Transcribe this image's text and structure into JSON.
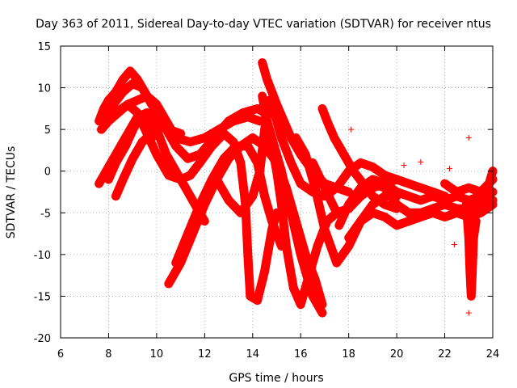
{
  "chart_data": {
    "type": "scatter",
    "title": "Day 363 of 2011, Sidereal Day-to-day VTEC variation (SDTVAR) for receiver ntus",
    "xlabel": "GPS time / hours",
    "ylabel": "SDTVAR / TECUs",
    "xlim": [
      6,
      24
    ],
    "ylim": [
      -20,
      15
    ],
    "xticks": [
      6,
      8,
      10,
      12,
      14,
      16,
      18,
      20,
      22,
      24
    ],
    "yticks": [
      -20,
      -15,
      -10,
      -5,
      0,
      5,
      10,
      15
    ],
    "grid": true,
    "marker": "+",
    "color": "#ff0000",
    "series": [
      {
        "values": [
          [
            7.6,
            6.0
          ],
          [
            7.8,
            7.5
          ],
          [
            8.0,
            8.5
          ],
          [
            8.3,
            9.5
          ],
          [
            8.6,
            11.0
          ],
          [
            8.9,
            12.0
          ],
          [
            9.2,
            11.0
          ],
          [
            9.6,
            9.0
          ],
          [
            10.0,
            7.0
          ],
          [
            10.5,
            5.0
          ],
          [
            11.0,
            4.5
          ]
        ]
      },
      {
        "values": [
          [
            7.7,
            5.0
          ],
          [
            8.0,
            6.0
          ],
          [
            8.4,
            7.0
          ],
          [
            8.8,
            8.0
          ],
          [
            9.2,
            8.5
          ],
          [
            9.6,
            9.0
          ],
          [
            10.0,
            8.0
          ],
          [
            10.4,
            6.0
          ],
          [
            10.8,
            4.0
          ],
          [
            11.4,
            3.5
          ],
          [
            12.0,
            4.0
          ],
          [
            12.6,
            5.0
          ],
          [
            13.2,
            6.0
          ],
          [
            13.8,
            6.5
          ],
          [
            14.3,
            6.0
          ]
        ]
      },
      {
        "values": [
          [
            7.9,
            6.5
          ],
          [
            8.2,
            8.0
          ],
          [
            8.6,
            9.5
          ],
          [
            9.0,
            10.5
          ],
          [
            9.4,
            10.0
          ],
          [
            9.8,
            8.0
          ],
          [
            10.3,
            5.5
          ],
          [
            10.8,
            3.0
          ],
          [
            11.3,
            1.5
          ],
          [
            11.8,
            2.0
          ],
          [
            12.4,
            4.0
          ],
          [
            13.0,
            6.0
          ],
          [
            13.6,
            7.0
          ],
          [
            14.2,
            7.5
          ],
          [
            14.5,
            7.0
          ],
          [
            14.8,
            4.0
          ],
          [
            15.2,
            0.0
          ],
          [
            15.6,
            -5.0
          ],
          [
            16.0,
            -10.0
          ],
          [
            16.5,
            -15.0
          ],
          [
            16.9,
            -17.0
          ]
        ]
      },
      {
        "values": [
          [
            7.8,
            5.5
          ],
          [
            8.3,
            7.0
          ],
          [
            8.8,
            8.0
          ],
          [
            9.2,
            7.0
          ],
          [
            9.6,
            4.5
          ],
          [
            10.0,
            2.0
          ],
          [
            10.5,
            -0.5
          ],
          [
            11.0,
            -1.0
          ],
          [
            11.4,
            -0.5
          ],
          [
            11.8,
            1.0
          ],
          [
            12.3,
            3.0
          ],
          [
            12.8,
            4.5
          ],
          [
            13.2,
            3.5
          ],
          [
            13.5,
            1.0
          ],
          [
            13.7,
            -4.0
          ],
          [
            13.8,
            -10.0
          ],
          [
            13.9,
            -15.0
          ],
          [
            14.2,
            -15.5
          ],
          [
            14.5,
            -12.0
          ],
          [
            14.8,
            -7.0
          ],
          [
            15.0,
            -5.0
          ]
        ]
      },
      {
        "values": [
          [
            7.6,
            -1.5
          ],
          [
            8.0,
            0.5
          ],
          [
            8.4,
            2.5
          ],
          [
            8.8,
            4.5
          ],
          [
            9.2,
            6.5
          ],
          [
            9.6,
            7.0
          ],
          [
            10.0,
            5.0
          ],
          [
            10.4,
            2.0
          ],
          [
            10.8,
            0.0
          ],
          [
            11.2,
            -2.0
          ],
          [
            11.6,
            -4.0
          ],
          [
            12.0,
            -6.0
          ]
        ]
      },
      {
        "values": [
          [
            8.0,
            -1.0
          ],
          [
            8.3,
            1.0
          ],
          [
            8.7,
            3.0
          ],
          [
            9.1,
            5.5
          ],
          [
            9.5,
            6.5
          ],
          [
            9.8,
            4.0
          ]
        ]
      },
      {
        "values": [
          [
            8.3,
            -3.0
          ],
          [
            8.6,
            -1.0
          ],
          [
            9.0,
            1.5
          ],
          [
            9.4,
            3.5
          ],
          [
            9.8,
            4.5
          ]
        ]
      },
      {
        "values": [
          [
            10.5,
            -13.5
          ],
          [
            11.0,
            -11.0
          ],
          [
            11.5,
            -7.5
          ],
          [
            12.0,
            -4.0
          ],
          [
            12.5,
            -1.0
          ],
          [
            13.0,
            1.5
          ],
          [
            13.5,
            3.0
          ],
          [
            14.0,
            4.0
          ],
          [
            14.5,
            3.0
          ],
          [
            15.0,
            1.0
          ],
          [
            15.4,
            -2.0
          ],
          [
            15.8,
            -6.0
          ],
          [
            16.2,
            -10.0
          ],
          [
            16.6,
            -13.0
          ],
          [
            16.9,
            -16.0
          ]
        ]
      },
      {
        "values": [
          [
            10.8,
            -11.0
          ],
          [
            11.3,
            -7.5
          ],
          [
            11.8,
            -4.0
          ],
          [
            12.3,
            -1.0
          ],
          [
            12.8,
            1.5
          ],
          [
            13.3,
            3.0
          ],
          [
            13.8,
            3.0
          ],
          [
            14.2,
            1.0
          ],
          [
            14.5,
            -3.0
          ],
          [
            14.8,
            -6.0
          ],
          [
            15.2,
            -9.0
          ]
        ]
      },
      {
        "values": [
          [
            12.5,
            -1.0
          ],
          [
            13.0,
            -3.5
          ],
          [
            13.5,
            -5.0
          ],
          [
            14.0,
            -3.0
          ],
          [
            14.3,
            0.0
          ],
          [
            14.5,
            5.0
          ],
          [
            14.7,
            8.5
          ],
          [
            14.9,
            7.0
          ],
          [
            15.2,
            4.0
          ],
          [
            15.6,
            1.0
          ],
          [
            16.0,
            -1.5
          ],
          [
            16.5,
            -2.5
          ],
          [
            17.0,
            -3.0
          ],
          [
            17.5,
            -2.0
          ],
          [
            18.0,
            0.0
          ],
          [
            18.5,
            1.0
          ],
          [
            19.0,
            0.5
          ],
          [
            19.5,
            -0.5
          ],
          [
            20.0,
            -1.0
          ]
        ]
      },
      {
        "values": [
          [
            14.4,
            13.0
          ],
          [
            14.6,
            11.0
          ],
          [
            14.8,
            9.5
          ],
          [
            15.0,
            8.0
          ],
          [
            15.3,
            6.0
          ],
          [
            15.6,
            4.0
          ],
          [
            16.0,
            2.0
          ],
          [
            16.5,
            0.0
          ],
          [
            17.0,
            -1.5
          ],
          [
            17.5,
            -2.0
          ],
          [
            18.0,
            -2.5
          ]
        ]
      },
      {
        "values": [
          [
            14.4,
            9.0
          ],
          [
            14.6,
            6.0
          ],
          [
            14.8,
            3.0
          ],
          [
            15.0,
            0.0
          ],
          [
            15.2,
            -4.0
          ],
          [
            15.4,
            -9.0
          ],
          [
            15.7,
            -14.0
          ],
          [
            16.0,
            -16.0
          ],
          [
            16.3,
            -13.0
          ],
          [
            16.7,
            -9.0
          ],
          [
            17.1,
            -6.0
          ],
          [
            17.5,
            -5.0
          ],
          [
            18.0,
            -4.5
          ]
        ]
      },
      {
        "values": [
          [
            15.8,
            4.0
          ],
          [
            16.2,
            2.0
          ],
          [
            16.6,
            -2.0
          ],
          [
            17.0,
            -7.0
          ],
          [
            17.5,
            -11.0
          ],
          [
            18.0,
            -9.0
          ],
          [
            18.5,
            -6.0
          ],
          [
            19.0,
            -4.0
          ],
          [
            19.5,
            -3.0
          ],
          [
            20.0,
            -3.0
          ]
        ]
      },
      {
        "values": [
          [
            16.5,
            1.0
          ],
          [
            17.0,
            -2.0
          ],
          [
            17.5,
            -5.0
          ],
          [
            18.0,
            -4.5
          ],
          [
            18.5,
            -3.0
          ],
          [
            19.0,
            -2.0
          ],
          [
            19.5,
            -1.5
          ],
          [
            20.0,
            -1.0
          ],
          [
            20.5,
            -1.5
          ],
          [
            21.0,
            -2.0
          ],
          [
            21.5,
            -2.5
          ],
          [
            22.0,
            -3.0
          ]
        ]
      },
      {
        "values": [
          [
            16.9,
            7.5
          ],
          [
            17.1,
            6.0
          ],
          [
            17.4,
            4.0
          ],
          [
            17.8,
            2.0
          ],
          [
            18.2,
            0.0
          ],
          [
            18.6,
            -1.5
          ],
          [
            19.0,
            -3.0
          ],
          [
            19.5,
            -4.0
          ],
          [
            20.0,
            -4.5
          ]
        ]
      },
      {
        "values": [
          [
            17.6,
            -6.5
          ],
          [
            18.0,
            -4.0
          ],
          [
            18.5,
            -2.0
          ],
          [
            19.0,
            -1.0
          ],
          [
            19.5,
            -1.5
          ],
          [
            20.0,
            -2.5
          ],
          [
            20.5,
            -3.0
          ],
          [
            21.0,
            -3.5
          ],
          [
            21.5,
            -3.0
          ],
          [
            22.0,
            -3.5
          ],
          [
            22.5,
            -3.0
          ],
          [
            23.0,
            -3.5
          ],
          [
            23.5,
            -3.0
          ],
          [
            24.0,
            -2.5
          ]
        ]
      },
      {
        "values": [
          [
            18.0,
            -8.0
          ],
          [
            18.5,
            -6.0
          ],
          [
            19.0,
            -5.0
          ],
          [
            19.5,
            -5.5
          ],
          [
            20.0,
            -6.5
          ],
          [
            20.5,
            -6.0
          ],
          [
            21.0,
            -5.5
          ],
          [
            21.5,
            -5.0
          ],
          [
            22.0,
            -5.5
          ],
          [
            22.5,
            -5.0
          ],
          [
            23.0,
            -5.5
          ],
          [
            23.5,
            -5.0
          ],
          [
            24.0,
            -4.0
          ]
        ]
      },
      {
        "values": [
          [
            19.0,
            -1.5
          ],
          [
            19.5,
            -2.0
          ],
          [
            20.0,
            -4.0
          ],
          [
            20.5,
            -5.0
          ],
          [
            21.0,
            -5.0
          ],
          [
            21.5,
            -4.5
          ],
          [
            22.0,
            -4.0
          ],
          [
            22.5,
            -4.5
          ],
          [
            23.0,
            -4.5
          ],
          [
            23.5,
            -4.0
          ],
          [
            24.0,
            -3.5
          ]
        ]
      },
      {
        "values": [
          [
            22.0,
            -1.5
          ],
          [
            22.5,
            -2.5
          ],
          [
            23.0,
            -2.0
          ],
          [
            23.5,
            -2.5
          ],
          [
            24.0,
            -1.0
          ]
        ]
      },
      {
        "values": [
          [
            22.9,
            -4.0
          ],
          [
            23.0,
            -8.0
          ],
          [
            23.05,
            -12.0
          ],
          [
            23.1,
            -15.0
          ],
          [
            23.15,
            -12.0
          ],
          [
            23.2,
            -8.0
          ],
          [
            23.3,
            -6.0
          ]
        ]
      },
      {
        "values": [
          [
            23.8,
            -2.0
          ],
          [
            23.9,
            -1.0
          ],
          [
            24.0,
            0.0
          ]
        ]
      }
    ],
    "outliers": [
      [
        18.1,
        5.0
      ],
      [
        20.3,
        0.7
      ],
      [
        21.0,
        1.1
      ],
      [
        23.0,
        4.0
      ],
      [
        23.0,
        -17.0
      ],
      [
        22.2,
        0.3
      ],
      [
        22.4,
        -8.8
      ]
    ]
  }
}
